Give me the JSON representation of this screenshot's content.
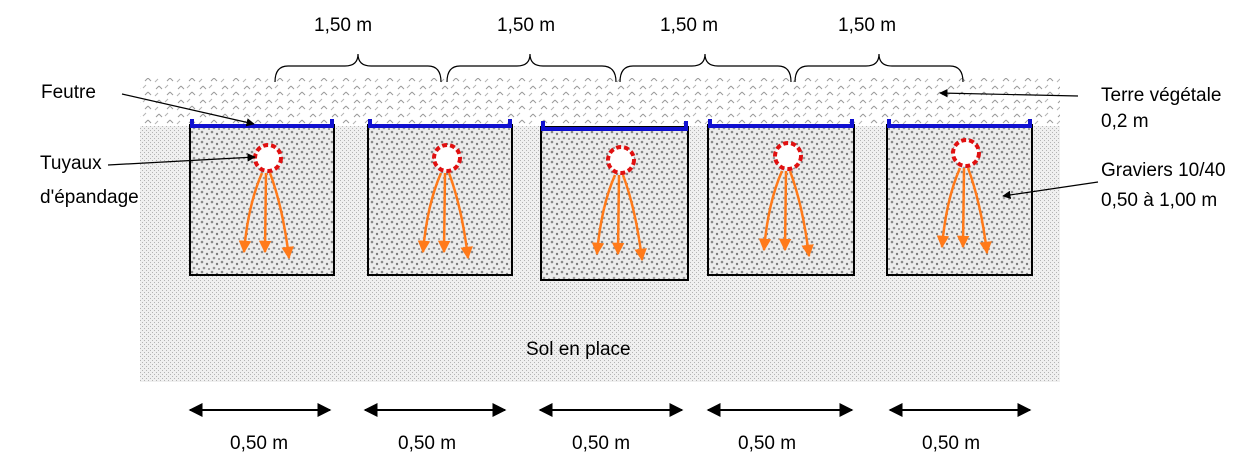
{
  "labels": {
    "feutre": "Feutre",
    "tuyaux_line1": "Tuyaux",
    "tuyaux_line2": "d'épandage",
    "terre_line1": "Terre végétale",
    "terre_line2": "0,2 m",
    "graviers_line1": "Graviers 10/40",
    "graviers_line2": "0,50 à 1,00 m",
    "sol": "Sol en place"
  },
  "spacing_labels": [
    "1,50 m",
    "1,50  m",
    "1,50  m",
    "1,50  m"
  ],
  "width_labels": [
    "0,50 m",
    "0,50 m",
    "0,50 m",
    "0,50 m",
    "0,50 m"
  ],
  "colors": {
    "felt": "#1010d0",
    "flow_arrow": "#ff7a1a",
    "pipe": "#e01010",
    "trench_outline": "#000000"
  }
}
